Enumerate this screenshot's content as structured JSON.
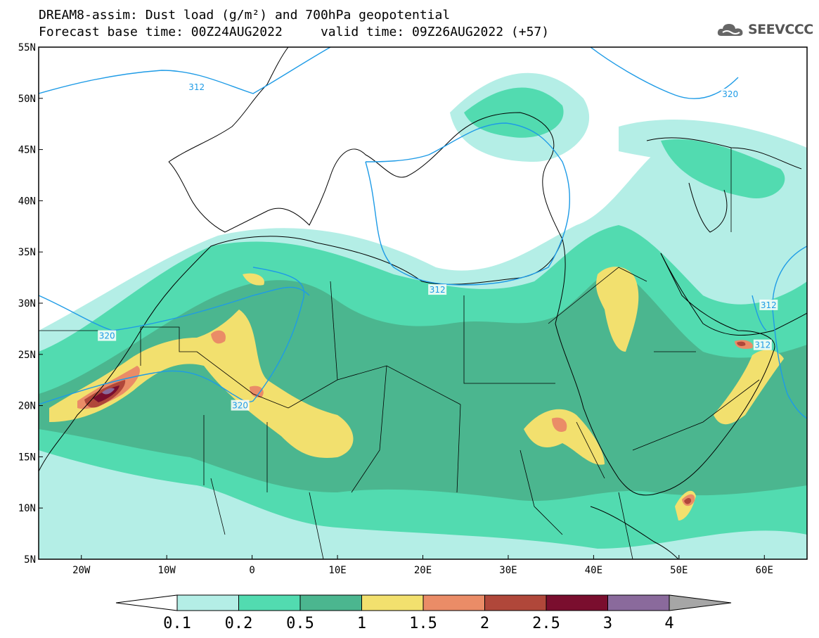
{
  "header": {
    "title": "DREAM8-assim: Dust load (g/m²) and 700hPa geopotential",
    "forecast": "Forecast base time: 00Z24AUG2022     valid time: 09Z26AUG2022 (+57)"
  },
  "logo": {
    "text": "SEEVCCC",
    "icon": "cloud-icon"
  },
  "map": {
    "lon_range": [
      -25,
      65
    ],
    "lat_range": [
      5,
      55
    ],
    "lat_ticks": [
      "55N",
      "50N",
      "45N",
      "40N",
      "35N",
      "30N",
      "25N",
      "20N",
      "15N",
      "10N",
      "5N"
    ],
    "lon_ticks": [
      "20W",
      "10W",
      "0",
      "10E",
      "20E",
      "30E",
      "40E",
      "50E",
      "60E"
    ],
    "contour_labels": [
      {
        "text": "312",
        "lon": -6.5,
        "lat": 51.1
      },
      {
        "text": "320",
        "lon": 56,
        "lat": 50.4
      },
      {
        "text": "320",
        "lon": -17,
        "lat": 26.8
      },
      {
        "text": "320",
        "lon": -1.4,
        "lat": 20
      },
      {
        "text": "312",
        "lon": 21.7,
        "lat": 31.3
      },
      {
        "text": "312",
        "lon": 60.5,
        "lat": 29.8
      },
      {
        "text": "312",
        "lon": 59.8,
        "lat": 25.9
      }
    ]
  },
  "legend": {
    "labels": [
      "0.1",
      "0.2",
      "0.5",
      "1",
      "1.5",
      "2",
      "2.5",
      "3",
      "4"
    ],
    "colors": [
      "#ffffff",
      "#b4eee6",
      "#52dbb0",
      "#4bb68f",
      "#f2e06e",
      "#ea8c67",
      "#b0473a",
      "#7a0e2e",
      "#8a6a9c",
      "#a6a6a6"
    ]
  }
}
